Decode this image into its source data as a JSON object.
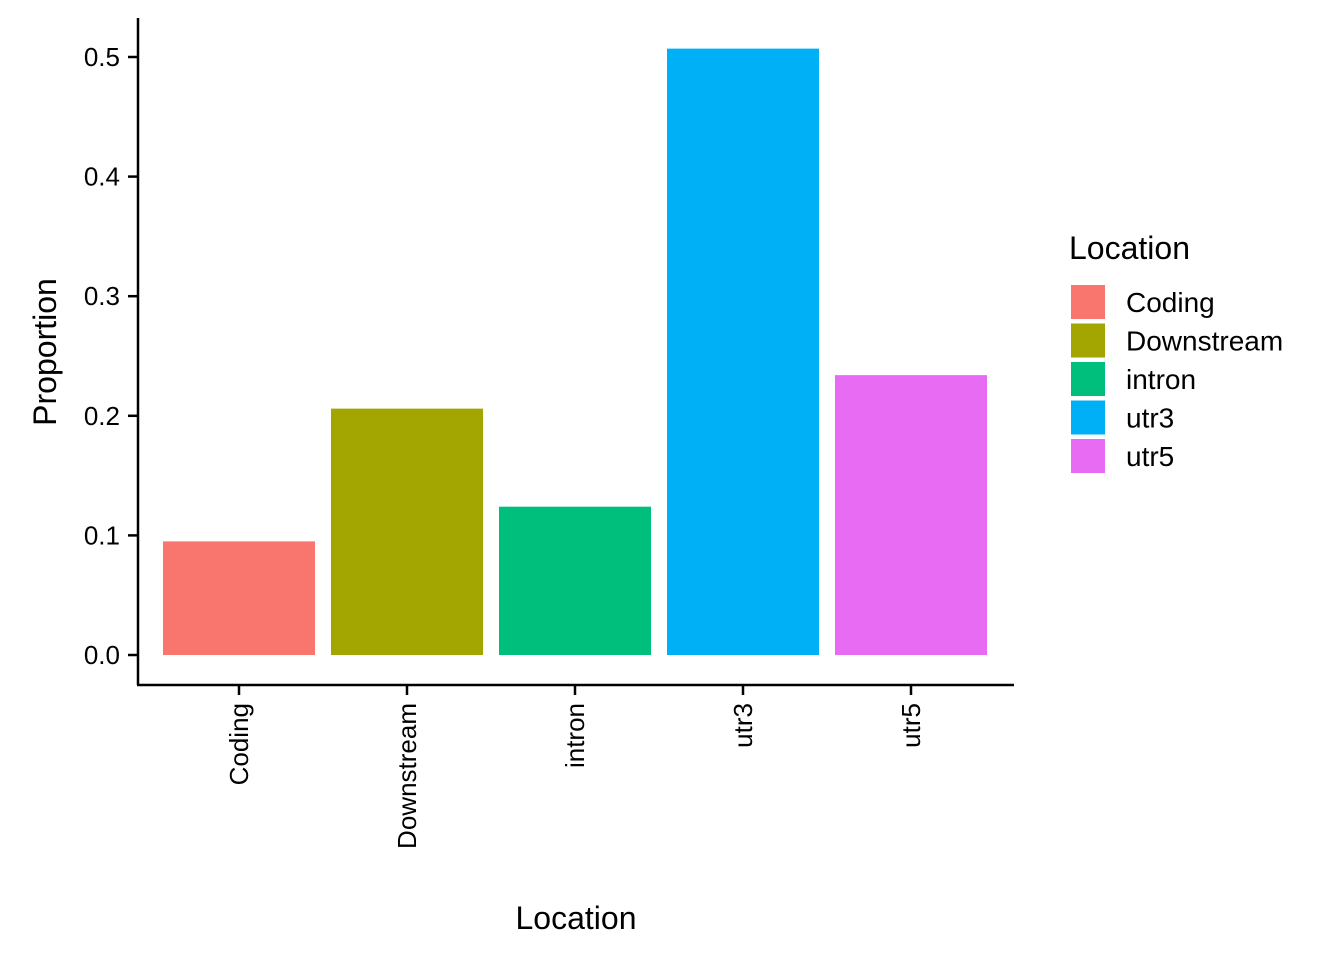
{
  "chart_data": {
    "type": "bar",
    "categories": [
      "Coding",
      "Downstream",
      "intron",
      "utr3",
      "utr5"
    ],
    "values": [
      0.095,
      0.206,
      0.124,
      0.507,
      0.234
    ],
    "colors": [
      "#F8766D",
      "#A3A500",
      "#00BF7D",
      "#00B0F6",
      "#E76BF3"
    ],
    "title": "",
    "xlabel": "Location",
    "ylabel": "Proportion",
    "ylim": [
      0,
      0.525
    ],
    "yticks": [
      0.0,
      0.1,
      0.2,
      0.3,
      0.4,
      0.5
    ],
    "ytick_labels": [
      "0.0",
      "0.1",
      "0.2",
      "0.3",
      "0.4",
      "0.5"
    ],
    "xtick_rotation": "vertical",
    "grid": false,
    "legend": {
      "title": "Location",
      "position": "right",
      "entries": [
        "Coding",
        "Downstream",
        "intron",
        "utr3",
        "utr5"
      ]
    }
  }
}
